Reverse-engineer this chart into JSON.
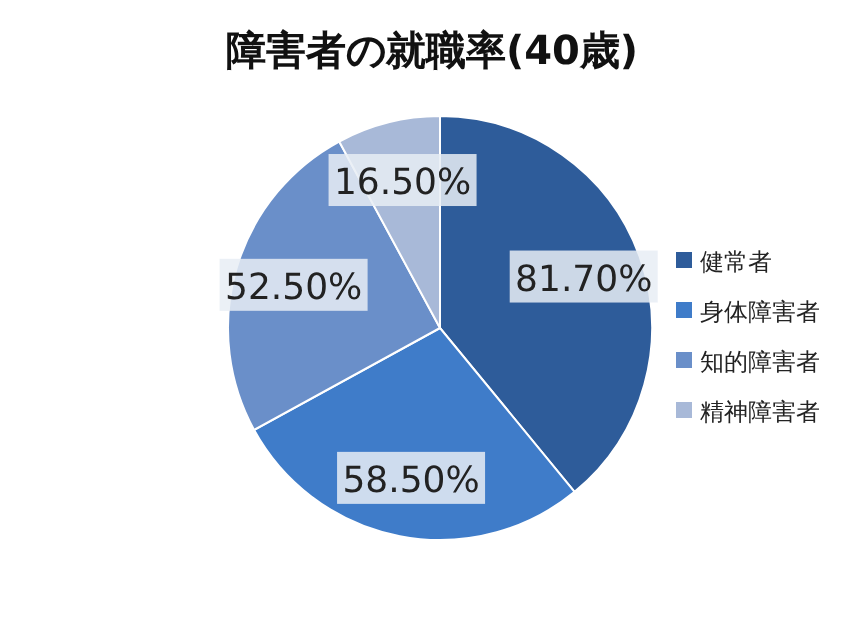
{
  "chart_data": {
    "type": "pie",
    "title": "障害者の就職率(40歳)",
    "categories": [
      "健常者",
      "身体障害者",
      "知的障害者",
      "精神障害者"
    ],
    "values": [
      81.7,
      58.5,
      52.5,
      16.5
    ],
    "value_labels": [
      "81.70%",
      "58.50%",
      "52.50%",
      "16.50%"
    ],
    "colors": [
      "#2e5c9a",
      "#3f7cc9",
      "#6a8fc9",
      "#a8b9d8"
    ],
    "legend": "right"
  }
}
